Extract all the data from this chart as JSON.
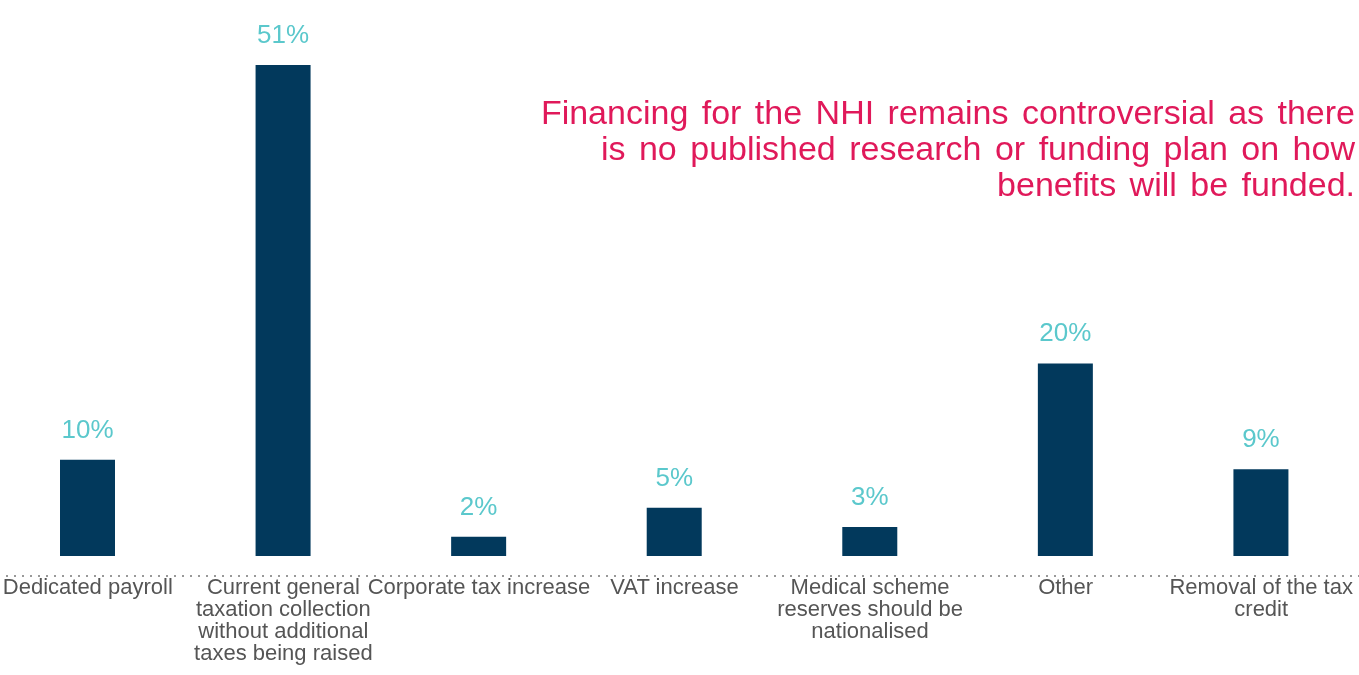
{
  "chart_data": {
    "type": "bar",
    "categories": [
      "Dedicated payroll",
      "Current general taxation collection without additional taxes being raised",
      "Corporate tax increase",
      "VAT increase",
      "Medical scheme reserves should be nationalised",
      "Other",
      "Removal of the tax credit"
    ],
    "values": [
      10,
      51,
      2,
      5,
      3,
      20,
      9
    ],
    "value_labels": [
      "10%",
      "51%",
      "2%",
      "5%",
      "3%",
      "20%",
      "9%"
    ],
    "color": "#02395c",
    "annotations": [
      "Financing for the NHI remains controversial as there is no published research or funding plan on how benefits will be funded."
    ],
    "grid": false,
    "legend": false
  }
}
